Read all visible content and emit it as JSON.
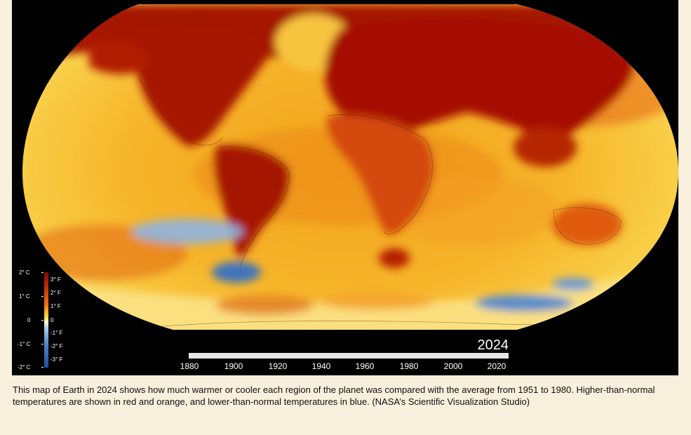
{
  "map": {
    "year": "2024",
    "legend": {
      "celsius_labels": [
        "2° C",
        "1° C",
        "0",
        "-1° C",
        "-2° C"
      ],
      "fahrenheit_labels": [
        "3° F",
        "2° F",
        "1° F",
        "0",
        "-1° F",
        "-2° F",
        "-3° F"
      ],
      "colors": {
        "hot": "#7a0a00",
        "warm": "#f07018",
        "neutral": "#fff7d0",
        "cool": "#4c86c5",
        "cold": "#1d4f97"
      }
    },
    "timeline": {
      "ticks": [
        "1880",
        "1900",
        "1920",
        "1940",
        "1960",
        "1980",
        "2000",
        "2020"
      ],
      "progress_fraction": 1.0
    }
  },
  "caption": {
    "text": "This map of Earth in 2024 shows how much warmer or cooler each region of the planet was compared with the average from 1951 to 1980. Higher-than-normal temperatures are shown in red and orange, and lower-than-normal temperatures in blue.  (NASA’s Scientific Visualization Studio)"
  }
}
